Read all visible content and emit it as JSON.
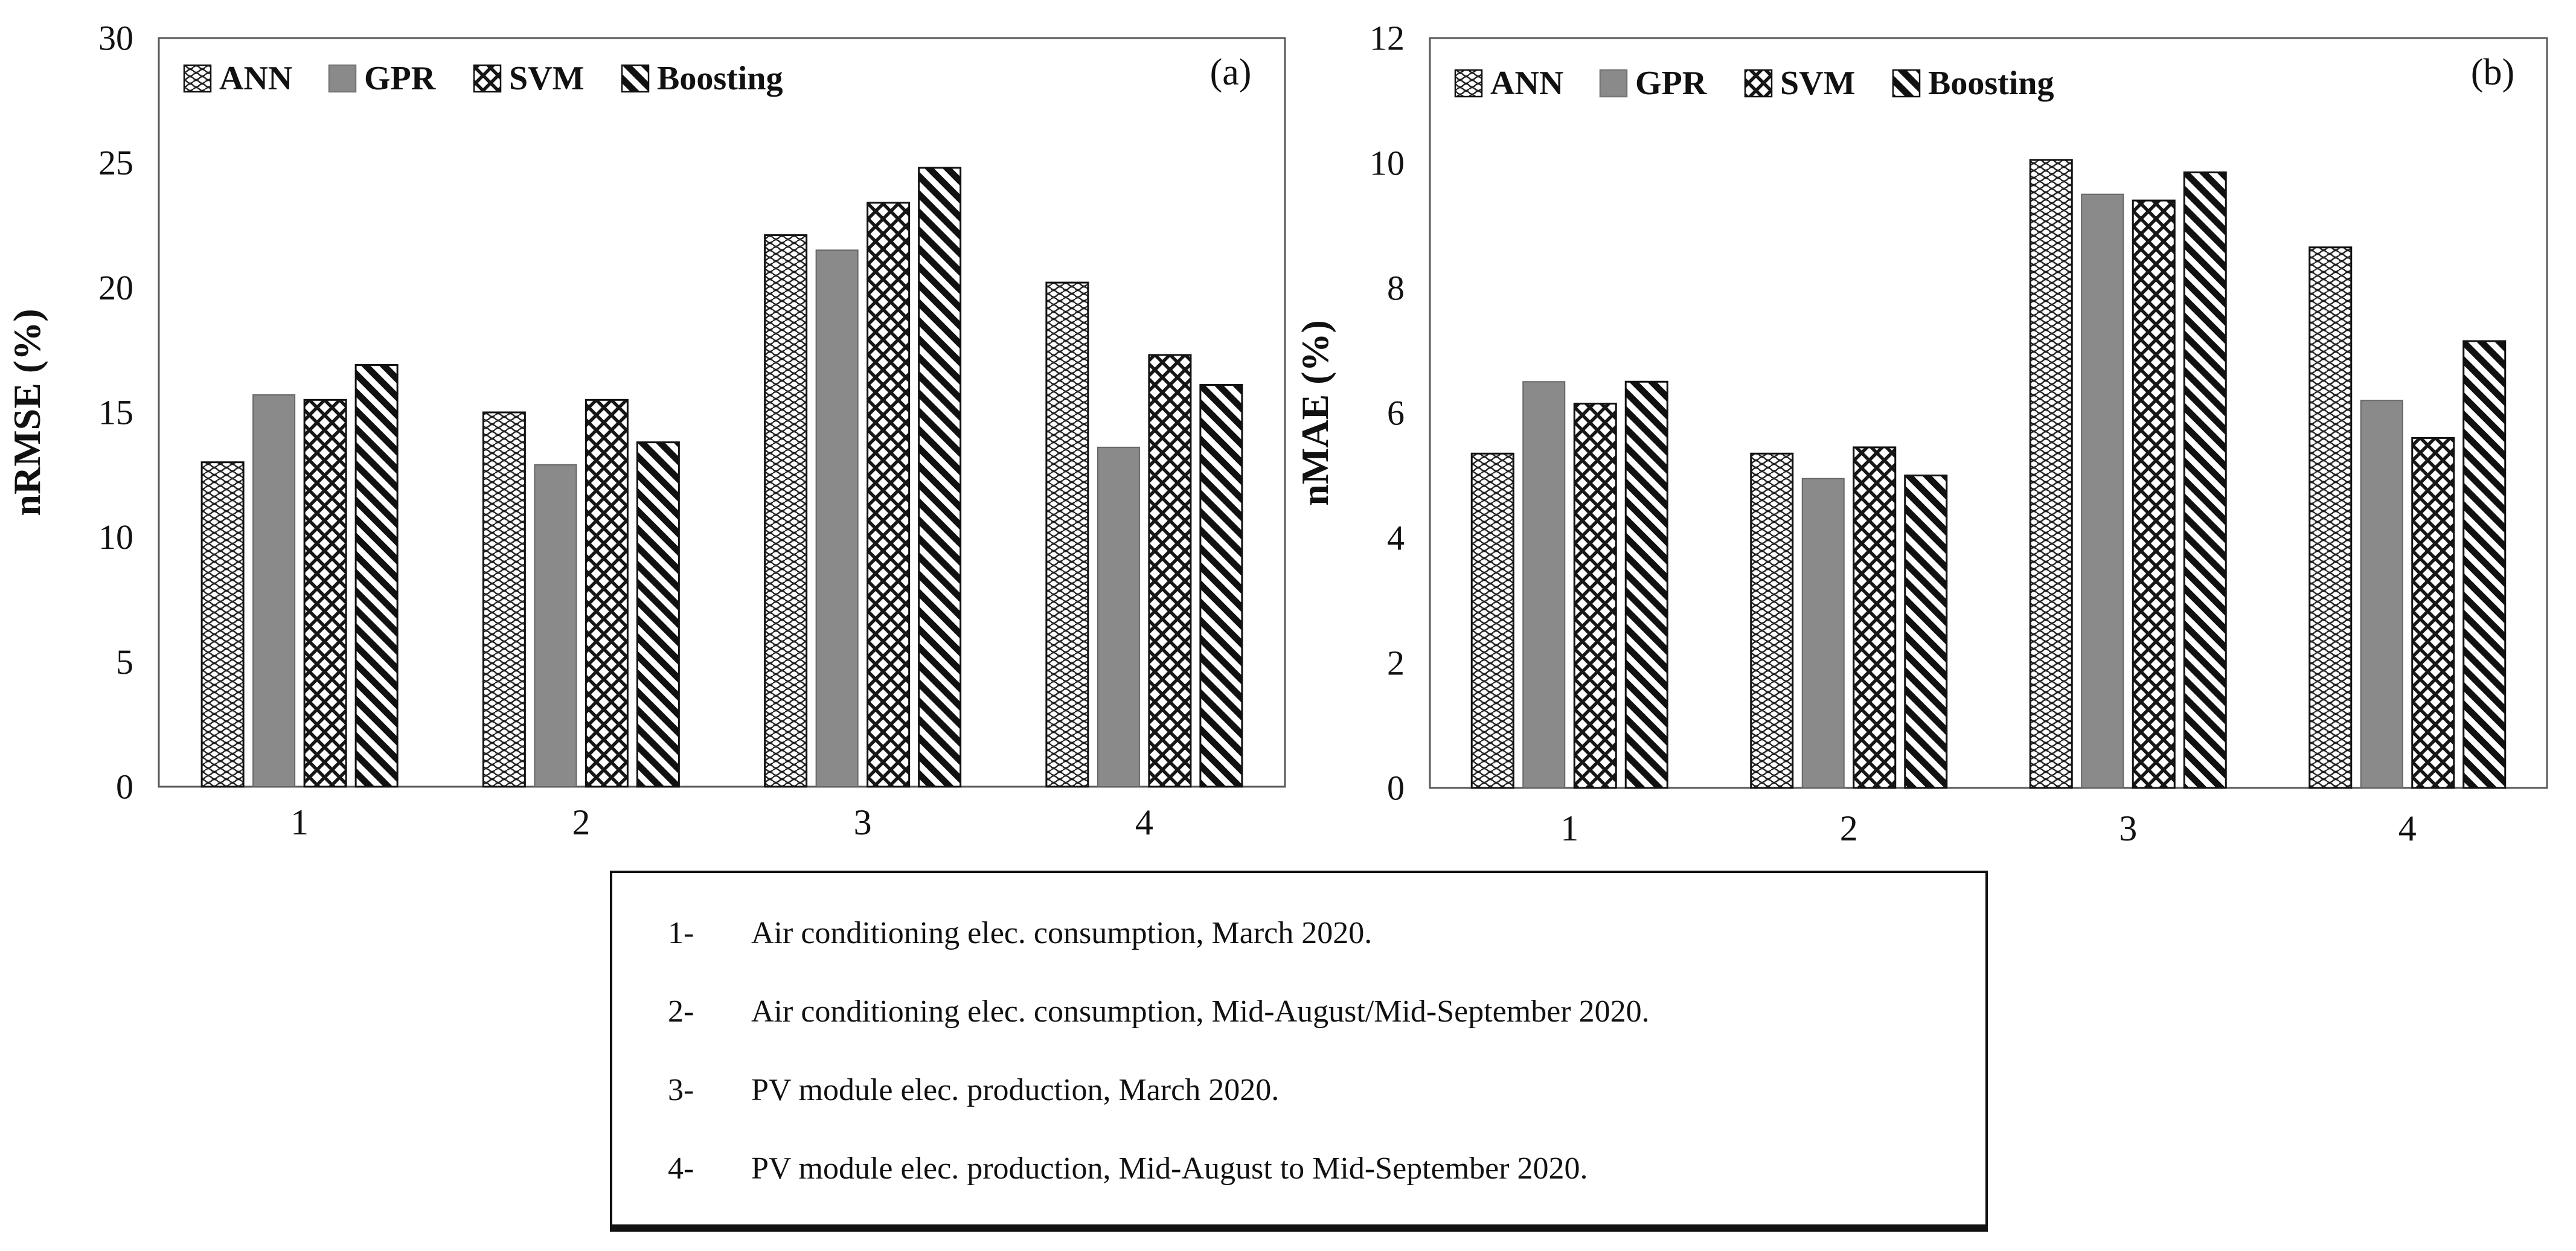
{
  "figure": {
    "type": "grouped-bar-figure",
    "background": "#ffffff"
  },
  "colors": {
    "gpr_gray": "#8a8a8a",
    "pattern_ink": "#161616",
    "plot_border": "#595959",
    "text": "#111111"
  },
  "chart_data": [
    {
      "type": "bar",
      "panel_label": "(a)",
      "ylabel": "nRMSE (%)",
      "ylim": [
        0,
        30
      ],
      "ytick_step": 5,
      "yticks": [
        0,
        5,
        10,
        15,
        20,
        25,
        30
      ],
      "grid": "off",
      "legend_position": "top-left-inside",
      "categories": [
        "1",
        "2",
        "3",
        "4"
      ],
      "series": [
        {
          "name": "ANN",
          "pattern": "waves",
          "values": [
            13.0,
            15.0,
            22.1,
            20.2
          ]
        },
        {
          "name": "GPR",
          "pattern": "solid-gray",
          "values": [
            15.7,
            12.9,
            21.5,
            13.6
          ]
        },
        {
          "name": "SVM",
          "pattern": "diamond-mesh",
          "values": [
            15.5,
            15.5,
            23.4,
            17.3
          ]
        },
        {
          "name": "Boosting",
          "pattern": "diagonal-stripes",
          "values": [
            16.9,
            13.8,
            24.8,
            16.1
          ]
        }
      ]
    },
    {
      "type": "bar",
      "panel_label": "(b)",
      "ylabel": "nMAE (%)",
      "ylim": [
        0,
        12
      ],
      "ytick_step": 2,
      "yticks": [
        0,
        2,
        4,
        6,
        8,
        10,
        12
      ],
      "grid": "off",
      "legend_position": "top-left-inside",
      "categories": [
        "1",
        "2",
        "3",
        "4"
      ],
      "series": [
        {
          "name": "ANN",
          "pattern": "waves",
          "values": [
            5.35,
            5.35,
            10.05,
            8.65
          ]
        },
        {
          "name": "GPR",
          "pattern": "solid-gray",
          "values": [
            6.5,
            4.95,
            9.5,
            6.2
          ]
        },
        {
          "name": "SVM",
          "pattern": "diamond-mesh",
          "values": [
            6.15,
            5.45,
            9.4,
            5.6
          ]
        },
        {
          "name": "Boosting",
          "pattern": "diagonal-stripes",
          "values": [
            6.5,
            5.0,
            9.85,
            7.15
          ]
        }
      ]
    }
  ],
  "note_box": {
    "items": [
      {
        "num": "1-",
        "text": "Air conditioning elec. consumption, March 2020."
      },
      {
        "num": "2-",
        "text": "Air conditioning elec. consumption, Mid-August/Mid-September 2020."
      },
      {
        "num": "3-",
        "text": "PV module elec. production, March 2020."
      },
      {
        "num": "4-",
        "text": "PV module elec. production, Mid-August to Mid-September 2020."
      }
    ]
  }
}
